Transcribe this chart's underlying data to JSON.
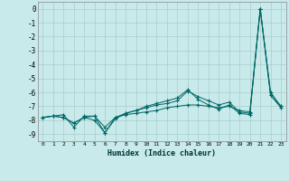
{
  "xlabel": "Humidex (Indice chaleur)",
  "background_color": "#c8eaea",
  "grid_color": "#aacccc",
  "line_color": "#006666",
  "x_values": [
    0,
    1,
    2,
    3,
    4,
    5,
    6,
    7,
    8,
    9,
    10,
    11,
    12,
    13,
    14,
    15,
    16,
    17,
    18,
    19,
    20,
    21,
    22,
    23
  ],
  "series1": [
    -7.8,
    -7.7,
    -7.8,
    -8.2,
    -7.8,
    -7.7,
    -8.5,
    -7.8,
    -7.6,
    -7.5,
    -7.4,
    -7.3,
    -7.1,
    -7.0,
    -6.9,
    -6.9,
    -7.0,
    -7.1,
    -7.0,
    -7.3,
    -7.4,
    0.0,
    -6.2,
    -7.0
  ],
  "series2": [
    -7.8,
    -7.7,
    -7.8,
    -8.2,
    -7.8,
    -8.0,
    -8.9,
    -7.9,
    -7.5,
    -7.3,
    -7.1,
    -6.9,
    -6.8,
    -6.6,
    -5.9,
    -6.3,
    -6.6,
    -6.9,
    -6.7,
    -7.4,
    -7.5,
    0.0,
    -6.0,
    -7.0
  ],
  "series3": [
    -7.8,
    -7.7,
    -7.6,
    -8.5,
    -7.7,
    -7.7,
    -8.9,
    -7.8,
    -7.5,
    -7.3,
    -7.0,
    -6.8,
    -6.6,
    -6.4,
    -5.8,
    -6.5,
    -6.9,
    -7.2,
    -6.9,
    -7.5,
    -7.6,
    0.0,
    -6.2,
    -7.1
  ],
  "ylim": [
    -9.5,
    0.5
  ],
  "xlim": [
    -0.5,
    23.5
  ],
  "yticks": [
    0,
    -1,
    -2,
    -3,
    -4,
    -5,
    -6,
    -7,
    -8,
    -9
  ],
  "xticks": [
    0,
    1,
    2,
    3,
    4,
    5,
    6,
    7,
    8,
    9,
    10,
    11,
    12,
    13,
    14,
    15,
    16,
    17,
    18,
    19,
    20,
    21,
    22,
    23
  ]
}
